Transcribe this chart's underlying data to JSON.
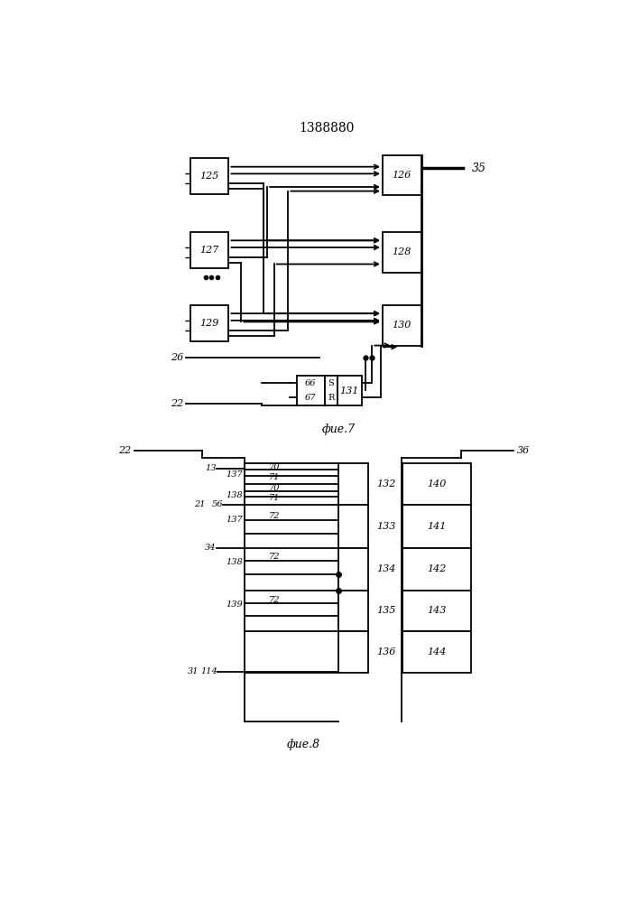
{
  "title": "1388880",
  "fig7_caption": "фие.7",
  "fig8_caption": "фие.8",
  "bg_color": "#ffffff",
  "line_color": "#000000",
  "lw": 1.3
}
